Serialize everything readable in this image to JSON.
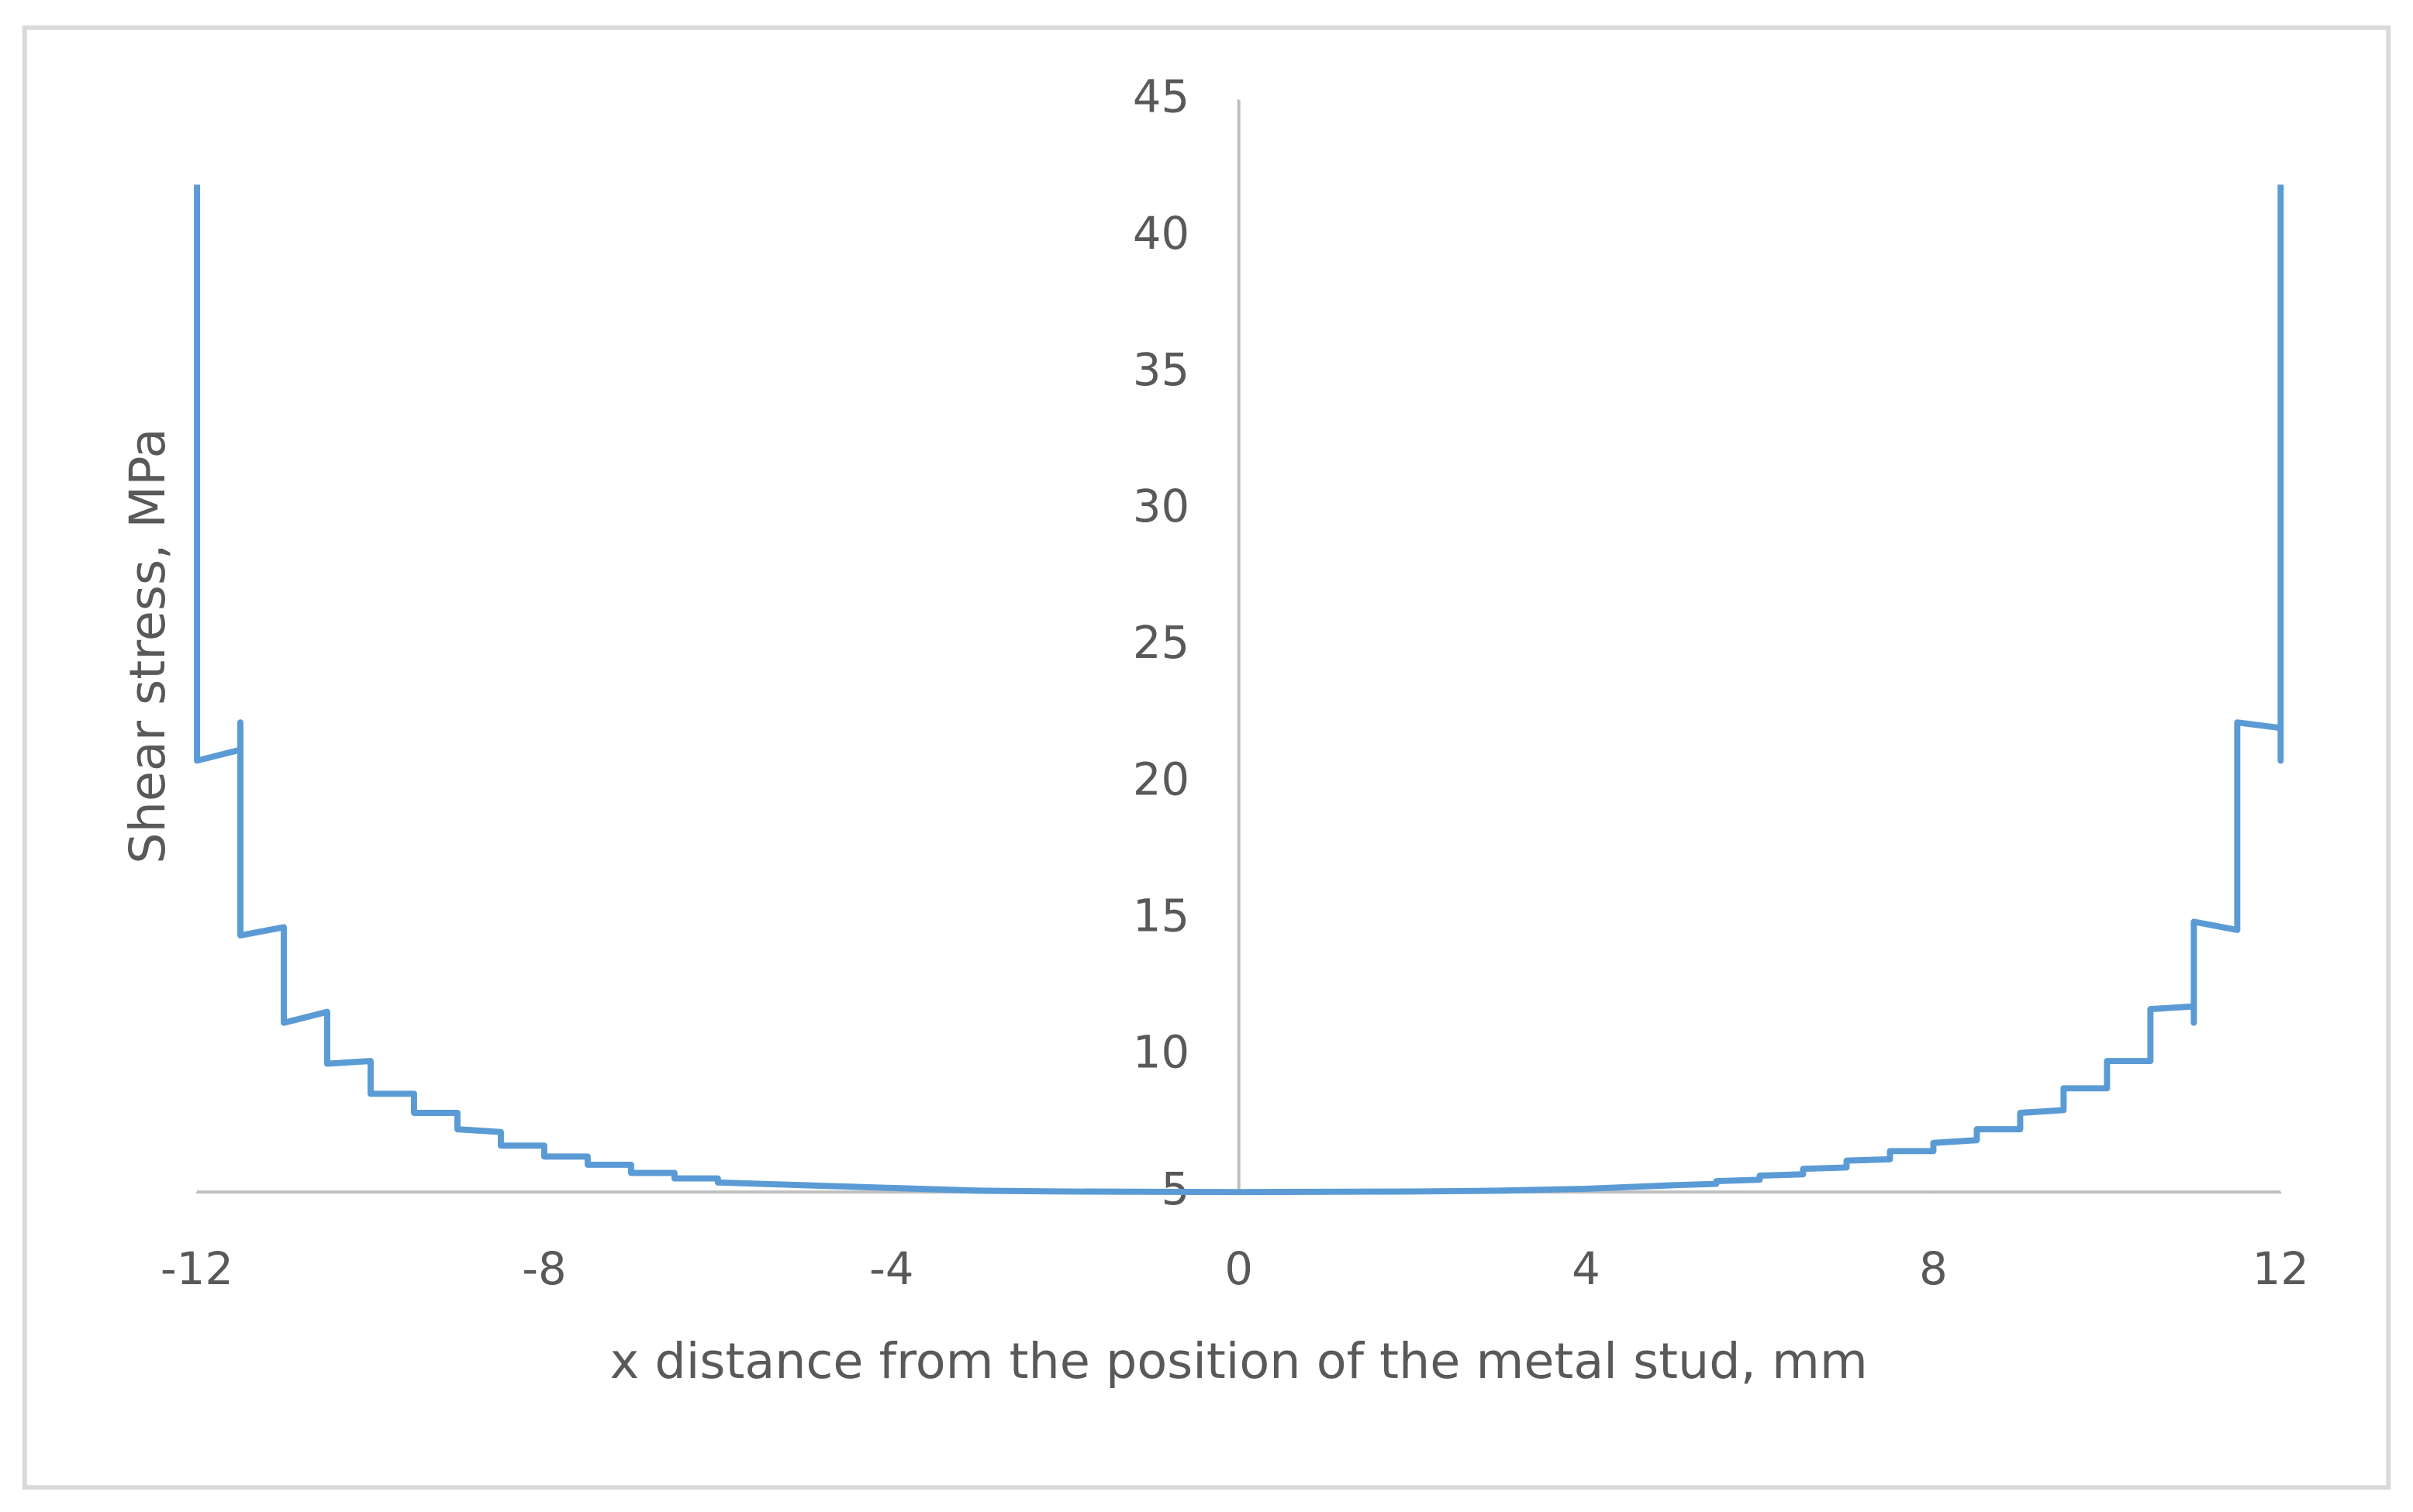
{
  "chart_data": {
    "type": "line",
    "xlabel": "x distance from the position of the metal stud, mm",
    "ylabel": "Shear stress, MPa",
    "x": [
      -12,
      -12,
      -11.5,
      -11.5,
      -11.5,
      -11,
      -11,
      -10.5,
      -10.5,
      -10,
      -10,
      -9.5,
      -9.5,
      -9,
      -9,
      -8.5,
      -8.5,
      -8,
      -8,
      -7.5,
      -7.5,
      -7,
      -7,
      -6.5,
      -6.5,
      -6,
      -6,
      -5,
      -4,
      -3,
      -2,
      0,
      2,
      3,
      4,
      5,
      5.5,
      5.5,
      6,
      6,
      6.5,
      6.5,
      7,
      7,
      7.5,
      7.5,
      8,
      8,
      8.5,
      8.5,
      9,
      9,
      9.5,
      9.5,
      10,
      10,
      10.5,
      10.5,
      11,
      11,
      11,
      11.5,
      11.5,
      12,
      12,
      12
    ],
    "values": [
      41.9,
      20.8,
      21.2,
      22.2,
      14.4,
      14.7,
      11.2,
      11.6,
      9.7,
      9.8,
      8.6,
      8.6,
      7.9,
      7.9,
      7.3,
      7.2,
      6.7,
      6.7,
      6.3,
      6.3,
      6.0,
      6.0,
      5.7,
      5.7,
      5.5,
      5.5,
      5.35,
      5.25,
      5.15,
      5.05,
      5.02,
      5.0,
      5.02,
      5.05,
      5.12,
      5.25,
      5.3,
      5.4,
      5.45,
      5.6,
      5.65,
      5.85,
      5.9,
      6.15,
      6.2,
      6.5,
      6.5,
      6.8,
      6.9,
      7.3,
      7.3,
      7.9,
      8.0,
      8.8,
      8.8,
      9.8,
      9.8,
      11.7,
      11.8,
      11.2,
      14.9,
      14.6,
      22.2,
      22.0,
      20.8,
      41.9
    ],
    "color": "#5b9bd5",
    "xlim": [
      -12,
      12
    ],
    "xticks": [
      -12,
      -8,
      -4,
      0,
      4,
      8,
      12
    ],
    "ylim": [
      5,
      45
    ],
    "yticks": [
      5,
      10,
      15,
      20,
      25,
      30,
      35,
      40,
      45
    ]
  }
}
